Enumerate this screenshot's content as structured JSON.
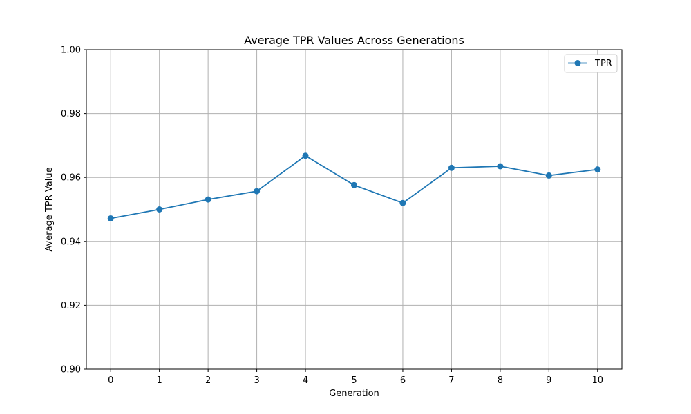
{
  "chart_data": {
    "type": "line",
    "title": "Average TPR Values Across Generations",
    "xlabel": "Generation",
    "ylabel": "Average TPR Value",
    "x": [
      0,
      1,
      2,
      3,
      4,
      5,
      6,
      7,
      8,
      9,
      10
    ],
    "xticks": [
      "0",
      "1",
      "2",
      "3",
      "4",
      "5",
      "6",
      "7",
      "8",
      "9",
      "10"
    ],
    "xlim": [
      -0.5,
      10.5
    ],
    "ylim": [
      0.9,
      1.0
    ],
    "yticks": [
      "0.90",
      "0.92",
      "0.94",
      "0.96",
      "0.98",
      "1.00"
    ],
    "grid": true,
    "legend_position": "top-right",
    "series": [
      {
        "name": "TPR",
        "color": "#1f77b4",
        "marker": "circle",
        "values": [
          0.9472,
          0.95,
          0.9531,
          0.9557,
          0.9668,
          0.9576,
          0.952,
          0.963,
          0.9635,
          0.9606,
          0.9625
        ]
      }
    ]
  }
}
